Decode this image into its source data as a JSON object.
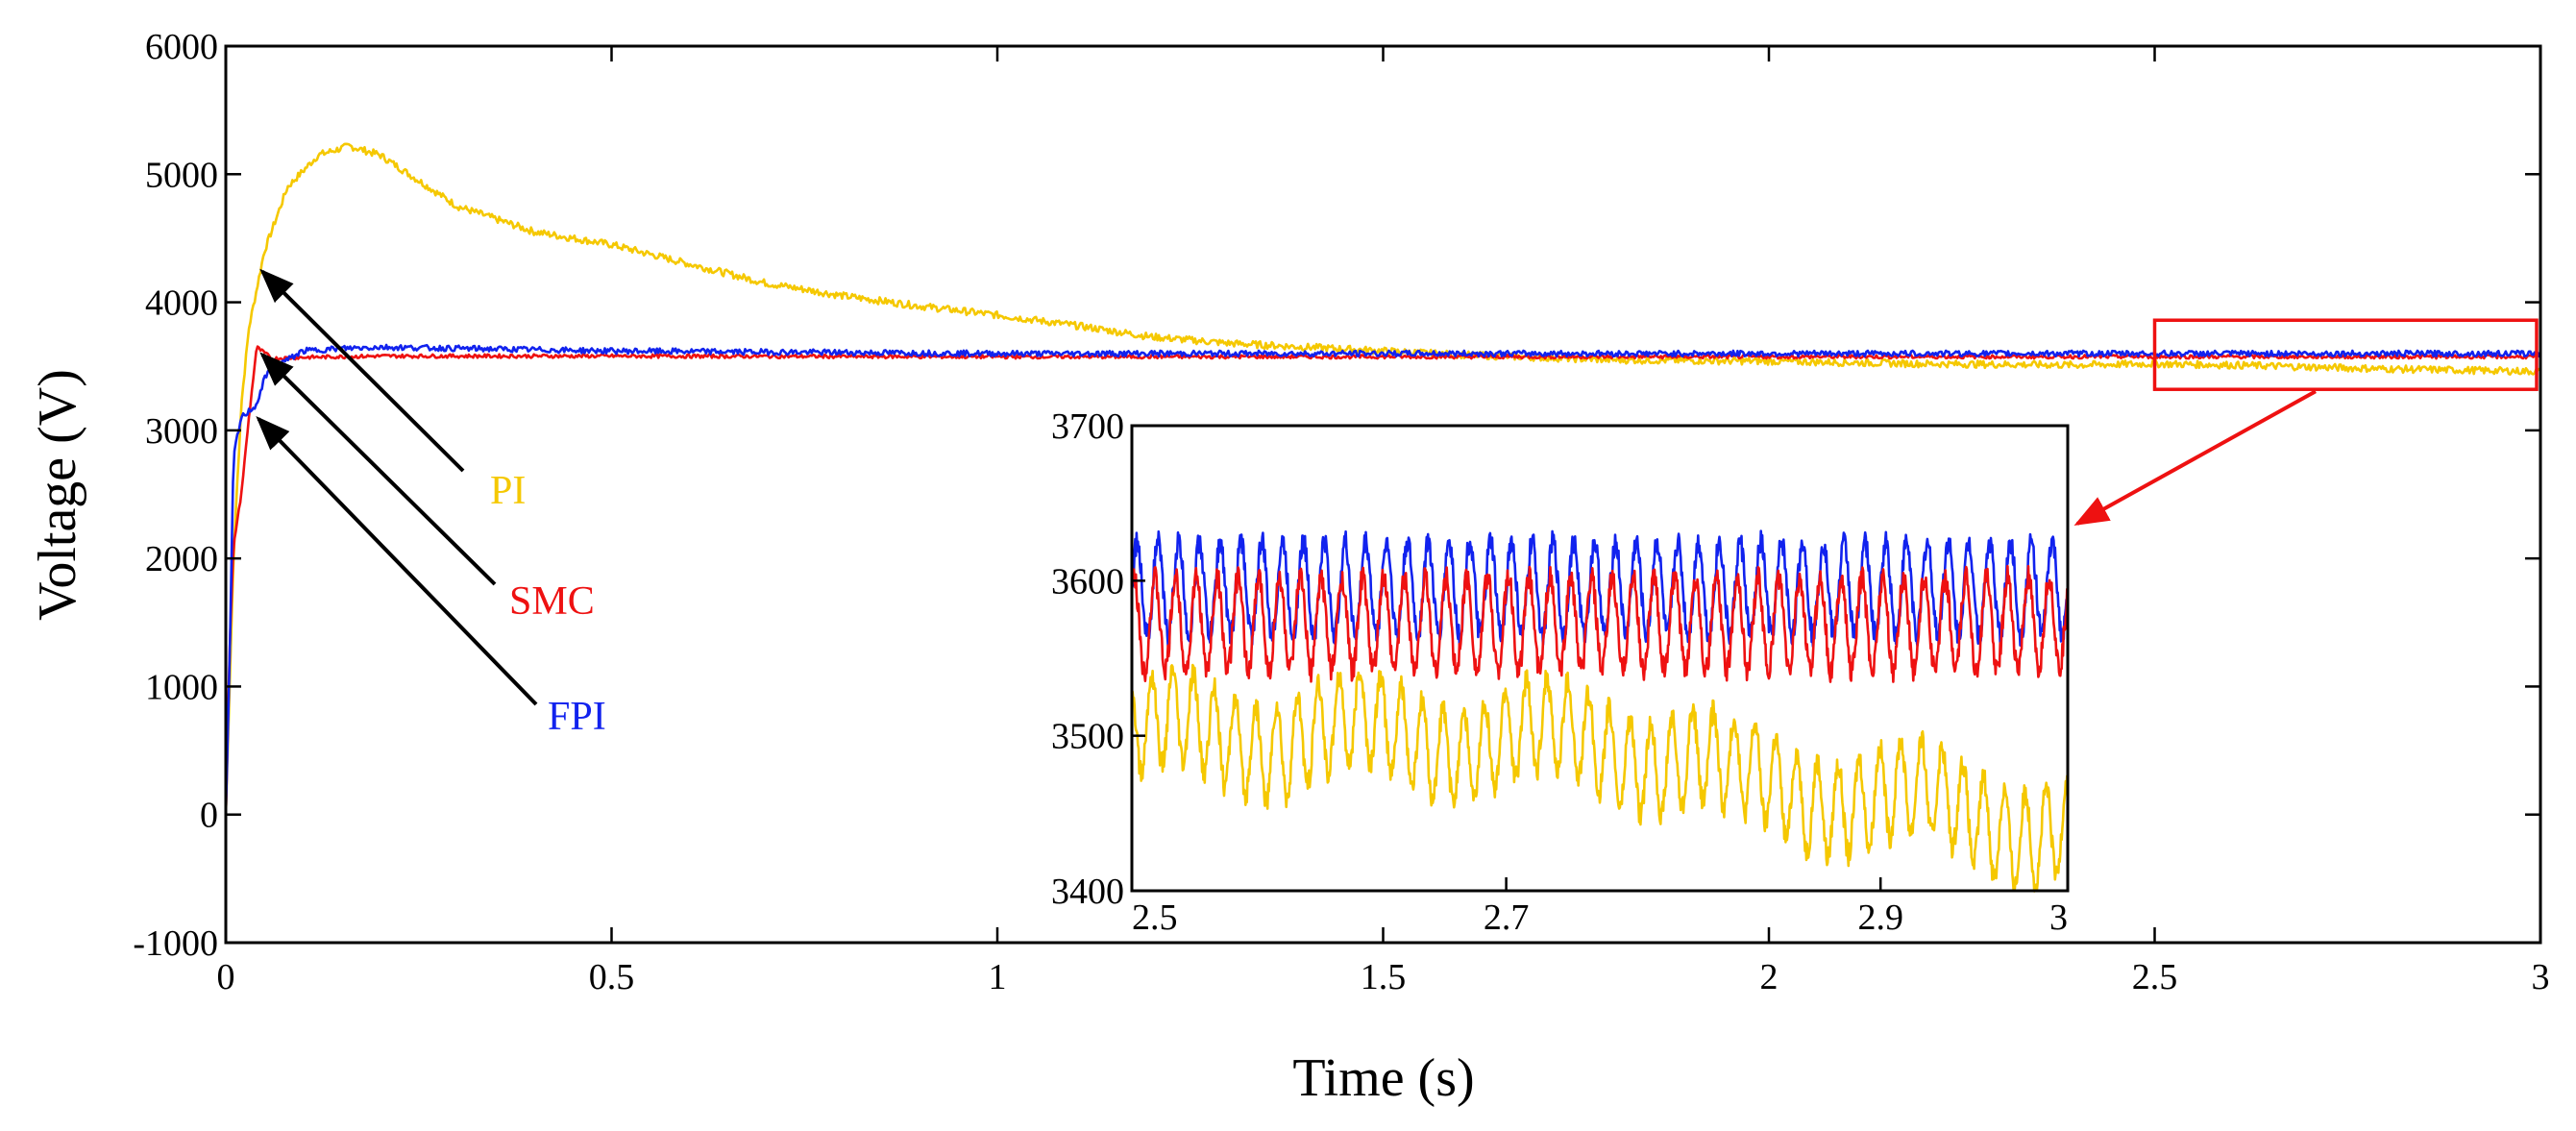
{
  "chart_data": {
    "type": "line",
    "title": "",
    "xlabel": "Time (s)",
    "ylabel": "Voltage (V)",
    "xlim": [
      0,
      3
    ],
    "ylim": [
      -1000,
      6000
    ],
    "xticks": [
      0,
      0.5,
      1,
      1.5,
      2,
      2.5,
      3
    ],
    "xtick_labels": [
      "0",
      "0.5",
      "1",
      "1.5",
      "2",
      "2.5",
      "3"
    ],
    "yticks": [
      -1000,
      0,
      1000,
      2000,
      3000,
      4000,
      5000,
      6000
    ],
    "ytick_labels": [
      "-1000",
      "0",
      "1000",
      "2000",
      "3000",
      "4000",
      "5000",
      "6000"
    ],
    "grid": false,
    "series": [
      {
        "name": "PI",
        "color": "#f5c800",
        "x": [
          0,
          0.01,
          0.02,
          0.03,
          0.05,
          0.08,
          0.12,
          0.16,
          0.2,
          0.25,
          0.3,
          0.4,
          0.5,
          0.6,
          0.7,
          0.8,
          0.9,
          1.0,
          1.1,
          1.2,
          1.3,
          1.4,
          1.5,
          1.6,
          1.8,
          2.0,
          2.2,
          2.4,
          2.5,
          2.6,
          2.8,
          3.0
        ],
        "values": [
          0,
          2000,
          3200,
          3800,
          4400,
          4900,
          5150,
          5220,
          5150,
          4950,
          4750,
          4550,
          4450,
          4300,
          4150,
          4050,
          3970,
          3900,
          3820,
          3730,
          3680,
          3650,
          3620,
          3590,
          3550,
          3540,
          3520,
          3510,
          3520,
          3510,
          3480,
          3460
        ]
      },
      {
        "name": "SMC",
        "color": "#ee1111",
        "x": [
          0,
          0.005,
          0.01,
          0.02,
          0.03,
          0.04,
          0.06,
          0.1,
          0.2,
          0.5,
          1.0,
          1.5,
          2.0,
          2.5,
          3.0
        ],
        "values": [
          0,
          1300,
          2100,
          2500,
          3100,
          3650,
          3560,
          3570,
          3580,
          3580,
          3575,
          3575,
          3575,
          3575,
          3575
        ]
      },
      {
        "name": "FPI",
        "color": "#1122ee",
        "x": [
          0,
          0.005,
          0.01,
          0.02,
          0.03,
          0.04,
          0.05,
          0.06,
          0.08,
          0.1,
          0.15,
          0.2,
          0.3,
          0.5,
          1.0,
          1.5,
          2.0,
          2.5,
          3.0
        ],
        "values": [
          0,
          1200,
          2800,
          3100,
          3150,
          3200,
          3400,
          3500,
          3550,
          3620,
          3640,
          3650,
          3640,
          3620,
          3600,
          3600,
          3600,
          3600,
          3600
        ]
      }
    ],
    "annotations": [
      {
        "text": "PI",
        "color": "#f5c800",
        "arrow_to": [
          0.035,
          4300
        ]
      },
      {
        "text": "SMC",
        "color": "#ee1111",
        "arrow_to": [
          0.035,
          3650
        ]
      },
      {
        "text": "FPI",
        "color": "#1122ee",
        "arrow_to": [
          0.03,
          3150
        ]
      }
    ],
    "inset": {
      "xlim": [
        2.5,
        3
      ],
      "ylim": [
        3400,
        3700
      ],
      "xticks": [
        2.5,
        2.7,
        2.9,
        3
      ],
      "xtick_labels": [
        "2.5",
        "2.7",
        "2.9",
        "3"
      ],
      "yticks": [
        3400,
        3500,
        3600,
        3700
      ],
      "ytick_labels": [
        "3400",
        "3500",
        "3600",
        "3700"
      ],
      "zoom_region": {
        "x": [
          2.5,
          3
        ],
        "y": [
          3400,
          3700
        ]
      },
      "oscillation_cycles": 45,
      "series": [
        {
          "name": "FPI",
          "color": "#1122ee",
          "x": [
            2.5,
            3.0
          ],
          "values": [
            3595,
            3595
          ],
          "amplitude": 30
        },
        {
          "name": "SMC",
          "color": "#ee1111",
          "x": [
            2.5,
            3.0
          ],
          "values": [
            3572,
            3572
          ],
          "amplitude": 30
        },
        {
          "name": "PI",
          "color": "#f5c800",
          "x": [
            2.5,
            2.62,
            2.75,
            2.8,
            2.82,
            2.9,
            2.95,
            3.0
          ],
          "values": [
            3500,
            3500,
            3495,
            3485,
            3470,
            3460,
            3450,
            3440
          ],
          "amplitude": 30
        }
      ]
    }
  }
}
